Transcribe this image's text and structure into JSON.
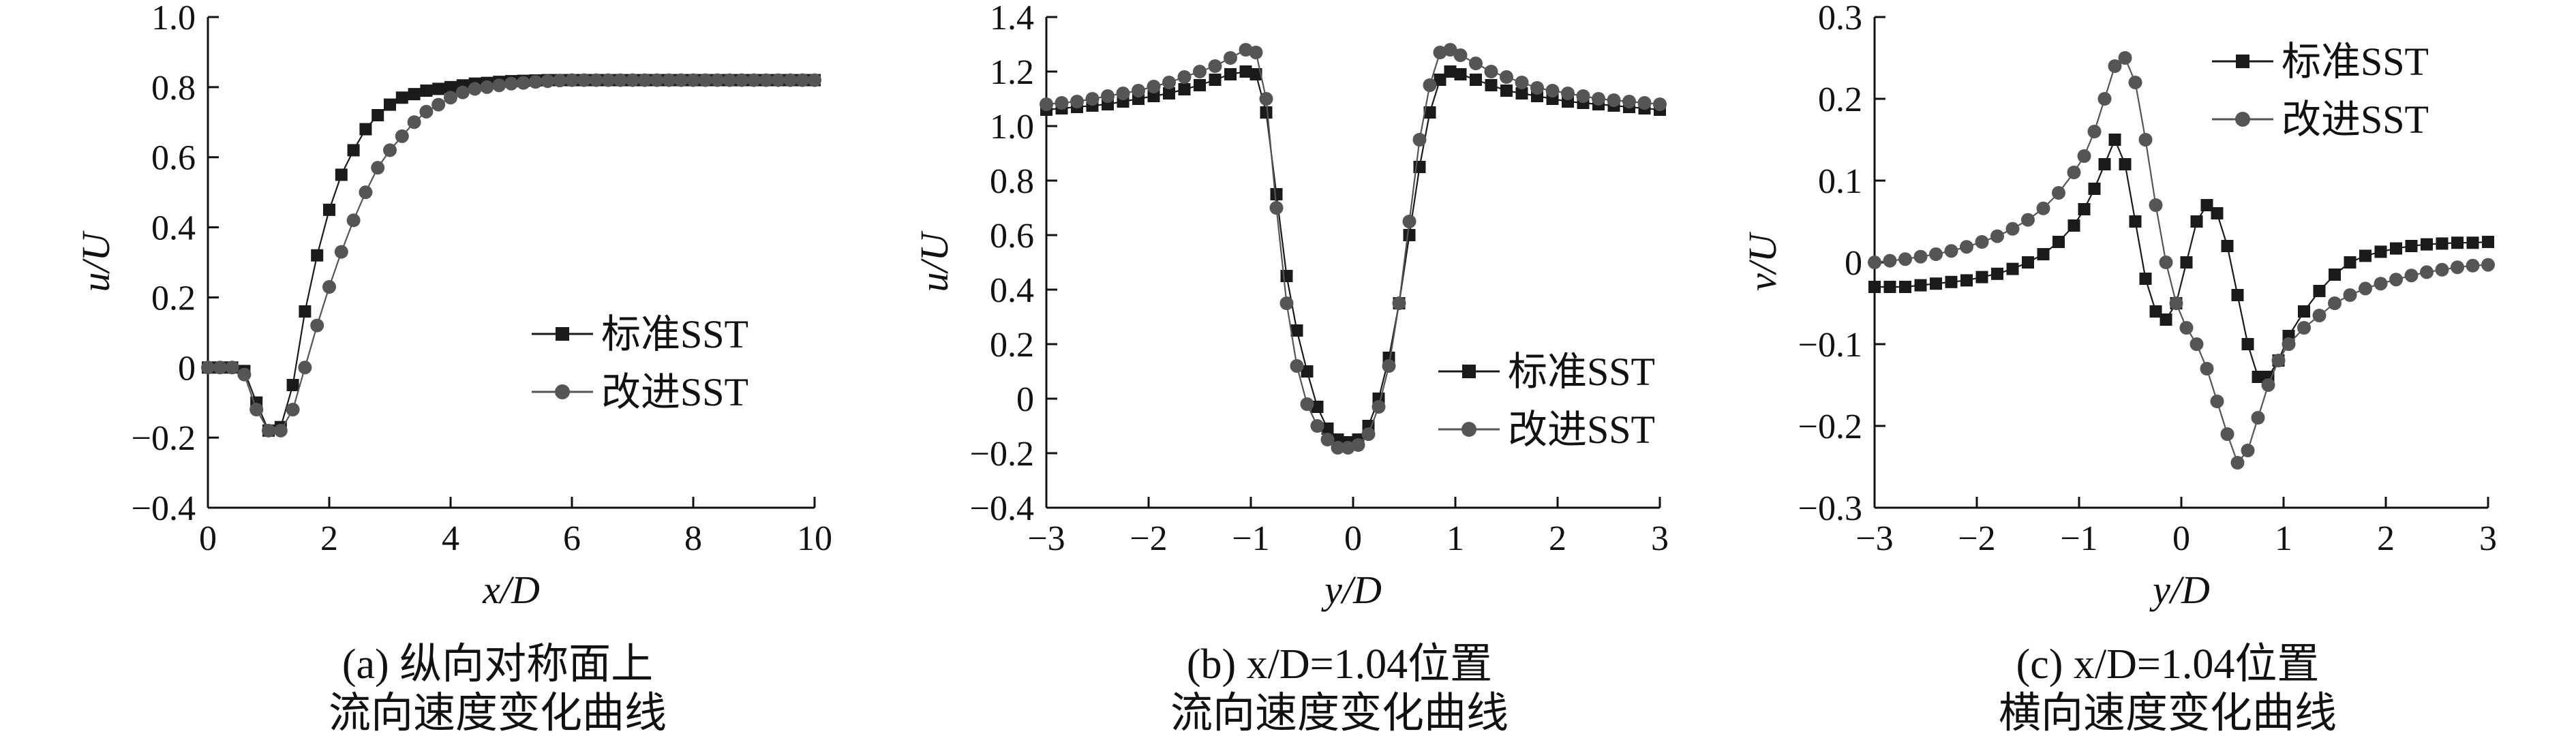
{
  "chart_data": [
    {
      "type": "line",
      "ylabel": "u/U",
      "xlabel": "x/D",
      "xlim": [
        0,
        10
      ],
      "ylim": [
        -0.4,
        1.0
      ],
      "xticks": [
        0,
        2,
        4,
        6,
        8,
        10
      ],
      "xtick_labels": [
        "0",
        "2",
        "4",
        "6",
        "8",
        "10"
      ],
      "yticks": [
        -0.4,
        -0.2,
        0,
        0.2,
        0.4,
        0.6,
        0.8,
        1.0
      ],
      "ytick_labels": [
        "−0.4",
        "−0.2",
        "0",
        "0.2",
        "0.4",
        "0.6",
        "0.8",
        "1.0"
      ],
      "caption": [
        "(a) 纵向对称面上",
        "流向速度变化曲线"
      ],
      "legend_position": "center-right",
      "series": [
        {
          "name": "标准SST",
          "marker": "square",
          "x": [
            0,
            0.2,
            0.4,
            0.6,
            0.8,
            1.0,
            1.2,
            1.4,
            1.6,
            1.8,
            2.0,
            2.2,
            2.4,
            2.6,
            2.8,
            3.0,
            3.2,
            3.4,
            3.6,
            3.8,
            4.0,
            4.2,
            4.4,
            4.6,
            4.8,
            5.0,
            5.2,
            5.4,
            5.6,
            5.8,
            6.0,
            6.2,
            6.4,
            6.6,
            6.8,
            7.0,
            7.2,
            7.4,
            7.6,
            7.8,
            8.0,
            8.2,
            8.4,
            8.6,
            8.8,
            9.0,
            9.2,
            9.4,
            9.6,
            9.8,
            10.0
          ],
          "y": [
            0.0,
            0.0,
            0.0,
            -0.01,
            -0.1,
            -0.18,
            -0.17,
            -0.05,
            0.16,
            0.32,
            0.45,
            0.55,
            0.62,
            0.68,
            0.72,
            0.75,
            0.77,
            0.78,
            0.79,
            0.795,
            0.8,
            0.805,
            0.81,
            0.812,
            0.815,
            0.817,
            0.818,
            0.819,
            0.82,
            0.82,
            0.82,
            0.82,
            0.82,
            0.82,
            0.82,
            0.82,
            0.82,
            0.82,
            0.82,
            0.82,
            0.82,
            0.82,
            0.82,
            0.82,
            0.82,
            0.82,
            0.82,
            0.82,
            0.82,
            0.82,
            0.82
          ]
        },
        {
          "name": "改进SST",
          "marker": "circle",
          "x": [
            0,
            0.2,
            0.4,
            0.6,
            0.8,
            1.0,
            1.2,
            1.4,
            1.6,
            1.8,
            2.0,
            2.2,
            2.4,
            2.6,
            2.8,
            3.0,
            3.2,
            3.4,
            3.6,
            3.8,
            4.0,
            4.2,
            4.4,
            4.6,
            4.8,
            5.0,
            5.2,
            5.4,
            5.6,
            5.8,
            6.0,
            6.2,
            6.4,
            6.6,
            6.8,
            7.0,
            7.2,
            7.4,
            7.6,
            7.8,
            8.0,
            8.2,
            8.4,
            8.6,
            8.8,
            9.0,
            9.2,
            9.4,
            9.6,
            9.8,
            10.0
          ],
          "y": [
            0.0,
            0.0,
            0.0,
            -0.02,
            -0.12,
            -0.18,
            -0.18,
            -0.12,
            0.0,
            0.12,
            0.23,
            0.33,
            0.42,
            0.5,
            0.57,
            0.62,
            0.66,
            0.7,
            0.73,
            0.75,
            0.77,
            0.785,
            0.795,
            0.8,
            0.805,
            0.81,
            0.812,
            0.815,
            0.817,
            0.819,
            0.82,
            0.82,
            0.82,
            0.82,
            0.82,
            0.82,
            0.82,
            0.82,
            0.82,
            0.82,
            0.82,
            0.82,
            0.82,
            0.82,
            0.82,
            0.82,
            0.82,
            0.82,
            0.82,
            0.82,
            0.82
          ]
        }
      ]
    },
    {
      "type": "line",
      "ylabel": "u/U",
      "xlabel": "y/D",
      "xlim": [
        -3,
        3
      ],
      "ylim": [
        -0.4,
        1.4
      ],
      "xticks": [
        -3,
        -2,
        -1,
        0,
        1,
        2,
        3
      ],
      "xtick_labels": [
        "−3",
        "−2",
        "−1",
        "0",
        "1",
        "2",
        "3"
      ],
      "yticks": [
        -0.4,
        -0.2,
        0,
        0.2,
        0.4,
        0.6,
        0.8,
        1.0,
        1.2,
        1.4
      ],
      "ytick_labels": [
        "−0.4",
        "−0.2",
        "0",
        "0.2",
        "0.4",
        "0.6",
        "0.8",
        "1.0",
        "1.2",
        "1.4"
      ],
      "caption": [
        "(b) x/D=1.04位置",
        "流向速度变化曲线"
      ],
      "legend_position": "lower-right",
      "series": [
        {
          "name": "标准SST",
          "marker": "square",
          "x": [
            -3.0,
            -2.85,
            -2.7,
            -2.55,
            -2.4,
            -2.25,
            -2.1,
            -1.95,
            -1.8,
            -1.65,
            -1.5,
            -1.35,
            -1.2,
            -1.05,
            -0.95,
            -0.85,
            -0.75,
            -0.65,
            -0.55,
            -0.45,
            -0.35,
            -0.25,
            -0.15,
            -0.05,
            0.05,
            0.15,
            0.25,
            0.35,
            0.45,
            0.55,
            0.65,
            0.75,
            0.85,
            0.95,
            1.05,
            1.2,
            1.35,
            1.5,
            1.65,
            1.8,
            1.95,
            2.1,
            2.25,
            2.4,
            2.55,
            2.7,
            2.85,
            3.0
          ],
          "y": [
            1.06,
            1.065,
            1.07,
            1.075,
            1.08,
            1.09,
            1.1,
            1.11,
            1.12,
            1.135,
            1.15,
            1.17,
            1.19,
            1.2,
            1.19,
            1.05,
            0.75,
            0.45,
            0.25,
            0.1,
            -0.03,
            -0.11,
            -0.15,
            -0.16,
            -0.15,
            -0.1,
            0.0,
            0.15,
            0.35,
            0.6,
            0.85,
            1.05,
            1.17,
            1.2,
            1.19,
            1.17,
            1.15,
            1.13,
            1.12,
            1.11,
            1.1,
            1.09,
            1.085,
            1.08,
            1.075,
            1.07,
            1.065,
            1.06
          ]
        },
        {
          "name": "改进SST",
          "marker": "circle",
          "x": [
            -3.0,
            -2.85,
            -2.7,
            -2.55,
            -2.4,
            -2.25,
            -2.1,
            -1.95,
            -1.8,
            -1.65,
            -1.5,
            -1.35,
            -1.2,
            -1.05,
            -0.95,
            -0.85,
            -0.75,
            -0.65,
            -0.55,
            -0.45,
            -0.35,
            -0.25,
            -0.15,
            -0.05,
            0.05,
            0.15,
            0.25,
            0.35,
            0.45,
            0.55,
            0.65,
            0.75,
            0.85,
            0.95,
            1.05,
            1.2,
            1.35,
            1.5,
            1.65,
            1.8,
            1.95,
            2.1,
            2.25,
            2.4,
            2.55,
            2.7,
            2.85,
            3.0
          ],
          "y": [
            1.08,
            1.085,
            1.09,
            1.1,
            1.11,
            1.12,
            1.13,
            1.145,
            1.16,
            1.18,
            1.2,
            1.22,
            1.25,
            1.28,
            1.27,
            1.1,
            0.7,
            0.35,
            0.12,
            -0.02,
            -0.1,
            -0.15,
            -0.18,
            -0.18,
            -0.17,
            -0.13,
            -0.03,
            0.12,
            0.35,
            0.65,
            0.95,
            1.15,
            1.27,
            1.28,
            1.26,
            1.23,
            1.2,
            1.18,
            1.16,
            1.14,
            1.13,
            1.12,
            1.11,
            1.1,
            1.095,
            1.09,
            1.085,
            1.08
          ]
        }
      ]
    },
    {
      "type": "line",
      "ylabel": "v/U",
      "xlabel": "y/D",
      "xlim": [
        -3,
        3
      ],
      "ylim": [
        -0.3,
        0.3
      ],
      "xticks": [
        -3,
        -2,
        -1,
        0,
        1,
        2,
        3
      ],
      "xtick_labels": [
        "−3",
        "−2",
        "−1",
        "0",
        "1",
        "2",
        "3"
      ],
      "yticks": [
        -0.3,
        -0.2,
        -0.1,
        0,
        0.1,
        0.2,
        0.3
      ],
      "ytick_labels": [
        "−0.3",
        "−0.2",
        "−0.1",
        "0",
        "0.1",
        "0.2",
        "0.3"
      ],
      "caption": [
        "(c) x/D=1.04位置",
        "横向速度变化曲线"
      ],
      "legend_position": "top-right",
      "series": [
        {
          "name": "标准SST",
          "marker": "square",
          "x": [
            -3.0,
            -2.85,
            -2.7,
            -2.55,
            -2.4,
            -2.25,
            -2.1,
            -1.95,
            -1.8,
            -1.65,
            -1.5,
            -1.35,
            -1.2,
            -1.05,
            -0.95,
            -0.85,
            -0.75,
            -0.65,
            -0.55,
            -0.45,
            -0.35,
            -0.25,
            -0.15,
            -0.05,
            0.05,
            0.15,
            0.25,
            0.35,
            0.45,
            0.55,
            0.65,
            0.75,
            0.85,
            0.95,
            1.05,
            1.2,
            1.35,
            1.5,
            1.65,
            1.8,
            1.95,
            2.1,
            2.25,
            2.4,
            2.55,
            2.7,
            2.85,
            3.0
          ],
          "y": [
            -0.03,
            -0.03,
            -0.03,
            -0.028,
            -0.026,
            -0.024,
            -0.022,
            -0.018,
            -0.014,
            -0.008,
            0.0,
            0.01,
            0.025,
            0.045,
            0.065,
            0.09,
            0.12,
            0.15,
            0.12,
            0.05,
            -0.02,
            -0.06,
            -0.07,
            -0.05,
            0.0,
            0.05,
            0.07,
            0.06,
            0.02,
            -0.04,
            -0.1,
            -0.14,
            -0.14,
            -0.12,
            -0.09,
            -0.06,
            -0.035,
            -0.015,
            0.0,
            0.008,
            0.013,
            0.017,
            0.02,
            0.022,
            0.023,
            0.024,
            0.024,
            0.025
          ]
        },
        {
          "name": "改进SST",
          "marker": "circle",
          "x": [
            -3.0,
            -2.85,
            -2.7,
            -2.55,
            -2.4,
            -2.25,
            -2.1,
            -1.95,
            -1.8,
            -1.65,
            -1.5,
            -1.35,
            -1.2,
            -1.05,
            -0.95,
            -0.85,
            -0.75,
            -0.65,
            -0.55,
            -0.45,
            -0.35,
            -0.25,
            -0.15,
            -0.05,
            0.05,
            0.15,
            0.25,
            0.35,
            0.45,
            0.55,
            0.65,
            0.75,
            0.85,
            0.95,
            1.05,
            1.2,
            1.35,
            1.5,
            1.65,
            1.8,
            1.95,
            2.1,
            2.25,
            2.4,
            2.55,
            2.7,
            2.85,
            3.0
          ],
          "y": [
            0.0,
            0.002,
            0.004,
            0.007,
            0.01,
            0.014,
            0.019,
            0.025,
            0.032,
            0.041,
            0.052,
            0.066,
            0.085,
            0.11,
            0.13,
            0.16,
            0.2,
            0.24,
            0.25,
            0.22,
            0.15,
            0.07,
            0.0,
            -0.05,
            -0.08,
            -0.1,
            -0.13,
            -0.17,
            -0.21,
            -0.245,
            -0.23,
            -0.19,
            -0.15,
            -0.12,
            -0.1,
            -0.08,
            -0.065,
            -0.05,
            -0.04,
            -0.032,
            -0.026,
            -0.021,
            -0.016,
            -0.012,
            -0.009,
            -0.006,
            -0.004,
            -0.003
          ]
        }
      ]
    }
  ]
}
